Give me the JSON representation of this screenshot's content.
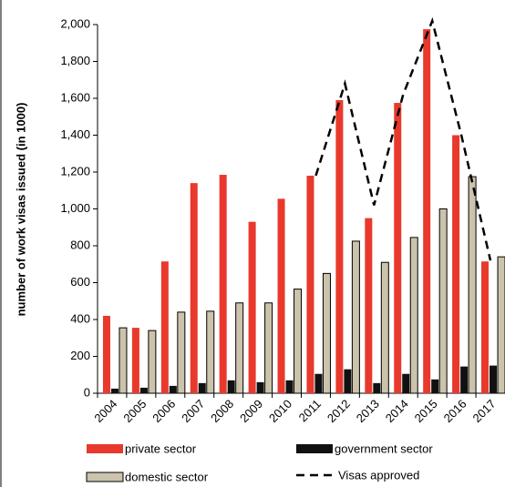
{
  "chart_data": {
    "type": "bar",
    "y_label": "number of work visas issued (in 1000)",
    "categories": [
      "2004",
      "2005",
      "2006",
      "2007",
      "2008",
      "2009",
      "2010",
      "2011",
      "2012",
      "2013",
      "2014",
      "2015",
      "2016",
      "2017"
    ],
    "series": [
      {
        "name": "private sector",
        "color": "#e8392c",
        "values": [
          420,
          355,
          715,
          1140,
          1185,
          930,
          1055,
          1180,
          1590,
          950,
          1575,
          1975,
          1400,
          715
        ]
      },
      {
        "name": "government sector",
        "color": "#111111",
        "values": [
          25,
          30,
          40,
          55,
          70,
          60,
          70,
          105,
          130,
          55,
          105,
          75,
          145,
          150
        ]
      },
      {
        "name": "domestic sector",
        "color": "#cbc3ab",
        "values": [
          355,
          340,
          440,
          445,
          490,
          490,
          565,
          650,
          825,
          710,
          845,
          1000,
          1175,
          740
        ]
      },
      {
        "name": "Visas approved",
        "type": "line",
        "dashed": true,
        "color": "#000000",
        "values": [
          null,
          null,
          null,
          null,
          null,
          null,
          null,
          1180,
          1680,
          1020,
          1620,
          2020,
          1400,
          720
        ]
      }
    ],
    "ylim": [
      0,
      2000
    ],
    "yticks": [
      0,
      200,
      400,
      600,
      800,
      {
        "value": 1000,
        "label": "1,000"
      },
      {
        "value": 1200,
        "label": "1,200"
      },
      {
        "value": 1400,
        "label": "1,400"
      },
      {
        "value": 1600,
        "label": "1,600"
      },
      {
        "value": 1800,
        "label": "1,800"
      },
      {
        "value": 2000,
        "label": "2,000"
      }
    ]
  }
}
